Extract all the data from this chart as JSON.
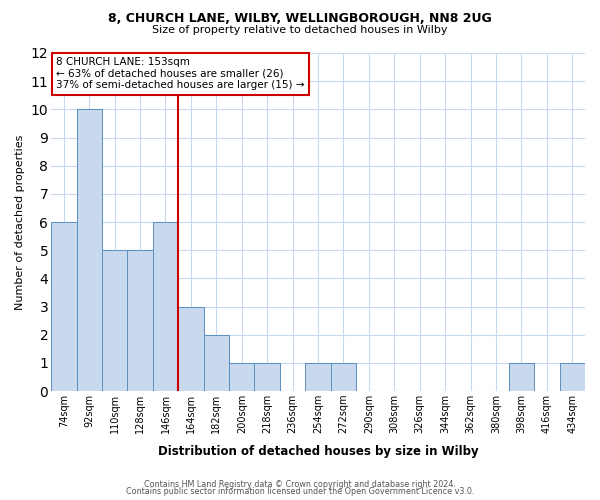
{
  "title_line1": "8, CHURCH LANE, WILBY, WELLINGBOROUGH, NN8 2UG",
  "title_line2": "Size of property relative to detached houses in Wilby",
  "xlabel": "Distribution of detached houses by size in Wilby",
  "ylabel": "Number of detached properties",
  "categories": [
    "74sqm",
    "92sqm",
    "110sqm",
    "128sqm",
    "146sqm",
    "164sqm",
    "182sqm",
    "200sqm",
    "218sqm",
    "236sqm",
    "254sqm",
    "272sqm",
    "290sqm",
    "308sqm",
    "326sqm",
    "344sqm",
    "362sqm",
    "380sqm",
    "398sqm",
    "416sqm",
    "434sqm"
  ],
  "values": [
    6,
    10,
    5,
    5,
    6,
    3,
    2,
    1,
    1,
    0,
    1,
    1,
    0,
    0,
    0,
    0,
    0,
    0,
    1,
    0,
    1
  ],
  "bar_color": "#c8d9ed",
  "bar_edge_color": "#5a8fc0",
  "annotation_title": "8 CHURCH LANE: 153sqm",
  "annotation_line2": "← 63% of detached houses are smaller (26)",
  "annotation_line3": "37% of semi-detached houses are larger (15) →",
  "annotation_box_color": "#cc0000",
  "red_line_x": 4.5,
  "ylim": [
    0,
    12
  ],
  "yticks": [
    0,
    1,
    2,
    3,
    4,
    5,
    6,
    7,
    8,
    9,
    10,
    11,
    12
  ],
  "footnote_line1": "Contains HM Land Registry data © Crown copyright and database right 2024.",
  "footnote_line2": "Contains public sector information licensed under the Open Government Licence v3.0.",
  "background_color": "#ffffff",
  "grid_color": "#c8d9ed"
}
